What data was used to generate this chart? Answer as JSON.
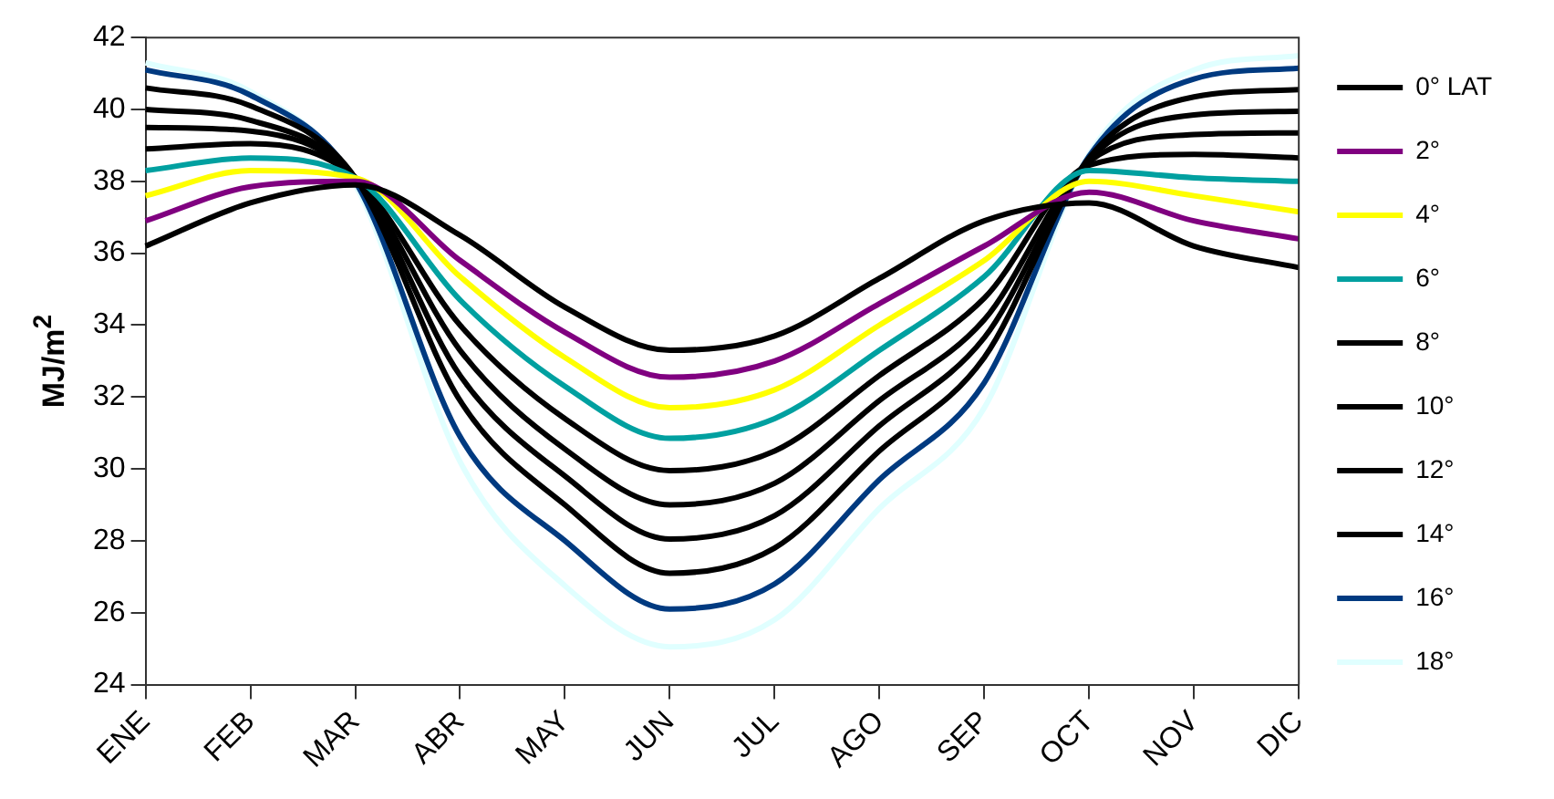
{
  "chart_data": {
    "type": "line",
    "ylabel": "MJ/m$^{2}$",
    "categories": [
      "ENE",
      "FEB",
      "MAR",
      "ABR",
      "MAY",
      "JUN",
      "JUL",
      "AGO",
      "SEP",
      "OCT",
      "NOV",
      "DIC"
    ],
    "ylim": [
      24,
      42
    ],
    "yticks": [
      24,
      26,
      28,
      30,
      32,
      34,
      36,
      38,
      40,
      42
    ],
    "grid": false,
    "legend": "right",
    "marker": "none",
    "line_style": "solid",
    "series": [
      {
        "name": "0° LAT",
        "color": "#000000",
        "values": [
          36.2,
          37.4,
          37.9,
          36.5,
          34.5,
          33.3,
          33.7,
          35.3,
          36.9,
          37.4,
          36.2,
          35.6
        ]
      },
      {
        "name": "2°",
        "color": "#800080",
        "values": [
          36.9,
          37.85,
          38.0,
          35.8,
          33.8,
          32.55,
          33.0,
          34.6,
          36.2,
          37.7,
          36.9,
          36.4
        ]
      },
      {
        "name": "4°",
        "color": "#ffff00",
        "values": [
          37.6,
          38.3,
          38.1,
          35.35,
          33.1,
          31.7,
          32.2,
          34.0,
          35.8,
          38.0,
          37.6,
          37.15
        ]
      },
      {
        "name": "6°",
        "color": "#00a0a0",
        "values": [
          38.3,
          38.65,
          38.1,
          34.7,
          32.3,
          30.85,
          31.4,
          33.3,
          35.35,
          38.3,
          38.1,
          38.0
        ]
      },
      {
        "name": "8°",
        "color": "#000000",
        "values": [
          38.9,
          39.05,
          38.1,
          34.0,
          31.4,
          29.95,
          30.5,
          32.6,
          34.75,
          38.45,
          38.75,
          38.65
        ]
      },
      {
        "name": "10°",
        "color": "#000000",
        "values": [
          39.5,
          39.4,
          38.1,
          33.3,
          30.55,
          29.0,
          29.6,
          31.9,
          34.15,
          38.55,
          39.3,
          39.35
        ]
      },
      {
        "name": "12°",
        "color": "#000000",
        "values": [
          40.0,
          39.7,
          38.1,
          32.6,
          29.8,
          28.05,
          28.7,
          31.2,
          33.65,
          38.6,
          39.85,
          39.95
        ]
      },
      {
        "name": "14°",
        "color": "#000000",
        "values": [
          40.6,
          40.1,
          38.1,
          31.9,
          29.0,
          27.1,
          27.8,
          30.5,
          33.1,
          38.65,
          40.35,
          40.55
        ]
      },
      {
        "name": "16°",
        "color": "#003a80",
        "values": [
          41.1,
          40.4,
          38.0,
          30.9,
          28.0,
          26.1,
          26.8,
          29.7,
          32.4,
          38.7,
          40.85,
          41.15
        ]
      },
      {
        "name": "18°",
        "color": "#e0ffff",
        "values": [
          41.3,
          40.5,
          37.9,
          30.2,
          26.75,
          25.05,
          25.8,
          28.9,
          31.7,
          38.75,
          41.1,
          41.5
        ]
      }
    ]
  }
}
